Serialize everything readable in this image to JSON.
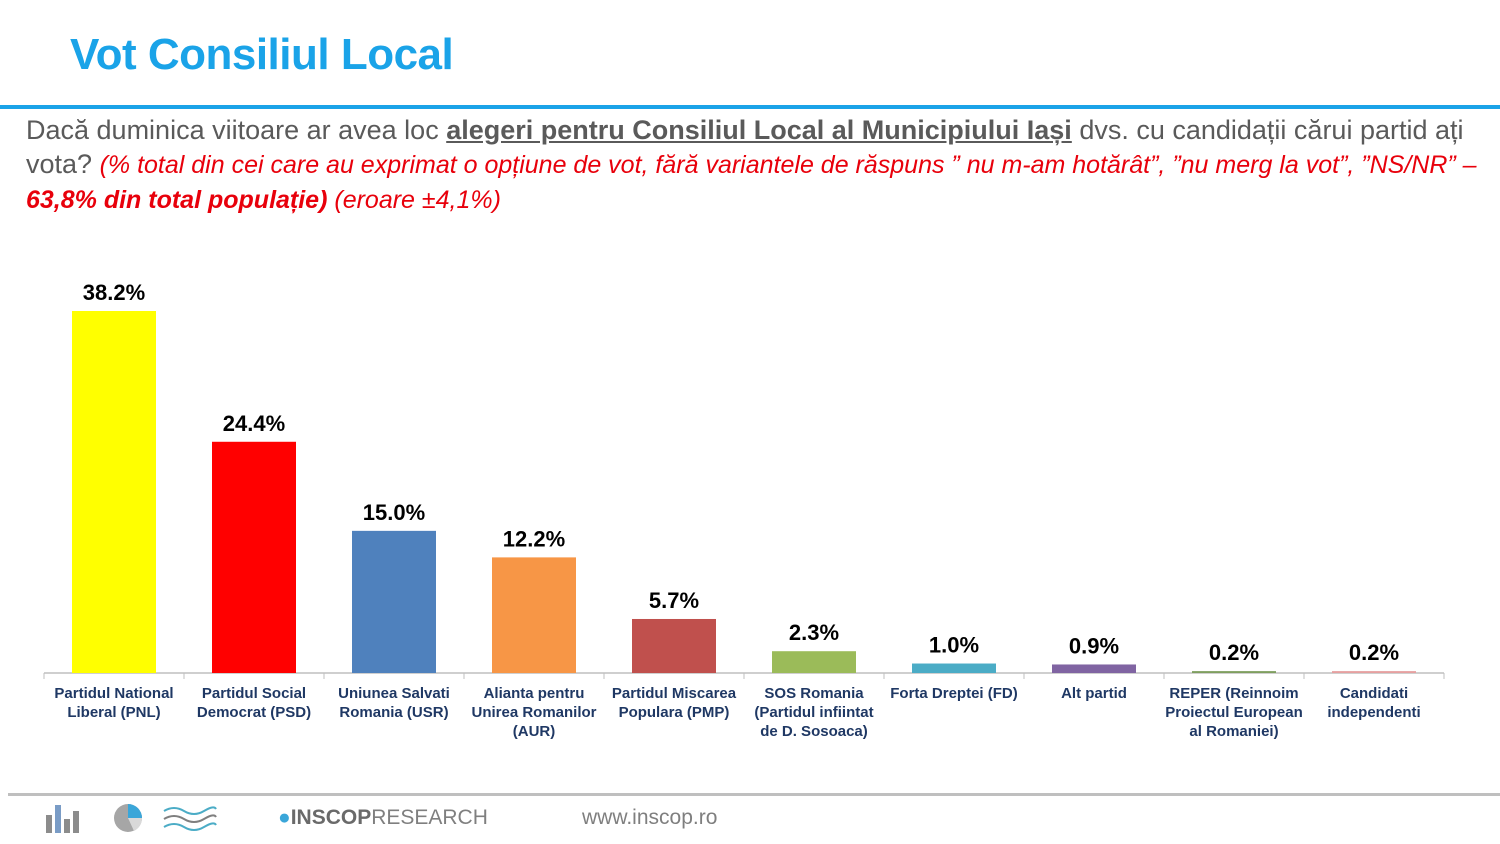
{
  "header": {
    "title": "Vot Consiliul Local"
  },
  "question": {
    "part1": "Dacă duminica viitoare ar avea loc ",
    "emphasis": "alegeri pentru Consiliul Local al Municipiului Iași",
    "part2": " dvs. cu candidații cărui partid ați vota? ",
    "note1": "(% total din cei care au exprimat o opțiune de vot, fără variantele de răspuns ” nu m-am hotărât”, ”nu merg la vot”, ”NS/NR” – ",
    "note_bold": "63,8% din total populație)",
    "note2": " (eroare ±4,1%)"
  },
  "chart_data": {
    "type": "bar",
    "categories": [
      "Partidul National Liberal (PNL)",
      "Partidul Social Democrat (PSD)",
      "Uniunea Salvati Romania (USR)",
      "Alianta pentru Unirea Romanilor (AUR)",
      "Partidul Miscarea Populara (PMP)",
      "SOS Romania (Partidul infiintat de D. Sosoaca)",
      "Forta Dreptei (FD)",
      "Alt partid",
      "REPER (Reinnoim Proiectul European al Romaniei)",
      "Candidati independenti"
    ],
    "values": [
      38.2,
      24.4,
      15.0,
      12.2,
      5.7,
      2.3,
      1.0,
      0.9,
      0.2,
      0.2
    ],
    "value_labels": [
      "38.2%",
      "24.4%",
      "15.0%",
      "12.2%",
      "5.7%",
      "2.3%",
      "1.0%",
      "0.9%",
      "0.2%",
      "0.2%"
    ],
    "colors": [
      "#ffff00",
      "#ff0000",
      "#4f81bd",
      "#f79646",
      "#c0504d",
      "#9bbb59",
      "#4bacc6",
      "#8064a2",
      "#7f9f5f",
      "#e6a0a0"
    ],
    "ylim": [
      0,
      40
    ],
    "grid": false,
    "legend": "none",
    "title": "",
    "xlabel": "",
    "ylabel": ""
  },
  "footer": {
    "icons": [
      "bar-chart-icon",
      "pie-chart-icon",
      "wave-icon"
    ],
    "brand_bold": "INSCOP",
    "brand_rest": "RESEARCH",
    "website": "www.inscop.ro"
  }
}
